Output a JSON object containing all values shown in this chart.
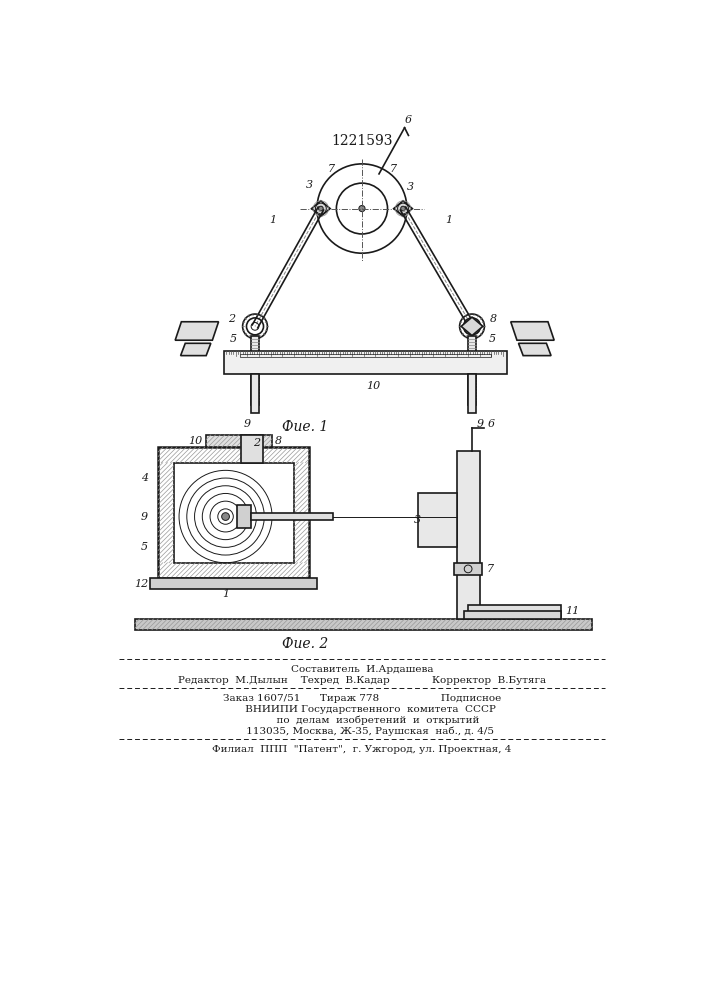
{
  "patent_number": "1221593",
  "fig1_label": "Фие. 1",
  "fig2_label": "Фие. 2",
  "bg_color": "#ffffff",
  "line_color": "#1a1a1a",
  "footer_lines": [
    "Составитель  И.Ардашева",
    "Редактор  М.Дылын    Техред  В.Кадар             Корректор  В.Бутяга",
    "Заказ 1607/51      Тираж 778                   Подписное",
    "     ВНИИПИ Государственного  комитета  СССР",
    "          по  делам  изобретений  и  открытий",
    "     113035, Москва, Ж-35, Раушская  наб., д. 4/5",
    "Филиал  ППП  \"Патент\",  г. Ужгород, ул. Проектная, 4"
  ]
}
